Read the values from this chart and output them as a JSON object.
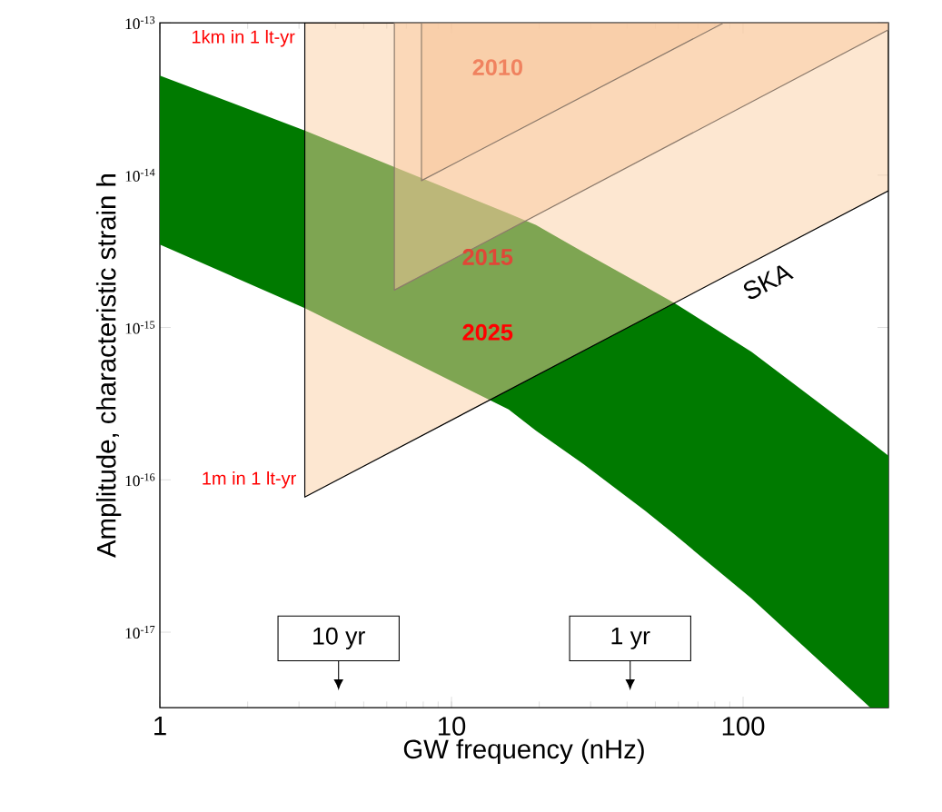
{
  "chart_data": {
    "type": "line",
    "xlabel": "GW frequency (nHz)",
    "ylabel": "Amplitude, characteristic strain h",
    "log": "xy",
    "xlim": [
      1,
      315
    ],
    "ylim": [
      3.2e-18,
      1e-13
    ],
    "xticks": [
      1,
      10,
      100
    ],
    "yticks": [
      {
        "value": 1e-13,
        "label": "10$^{-13}$"
      },
      {
        "value": 1e-14,
        "label": "10$^{-14}$"
      },
      {
        "value": 1e-15,
        "label": "10$^{-15}$"
      },
      {
        "value": 1e-16,
        "label": "10$^{-16}$"
      },
      {
        "value": 1e-17,
        "label": "10$^{-17}$"
      }
    ],
    "series": [
      {
        "color": "#007a00",
        "x": [
          1,
          3.14,
          15.7,
          19.5,
          28.5,
          46,
          58,
          107,
          273,
          315
        ],
        "values": [
          null,
          null,
          null,
          null,
          null,
          null,
          null,
          null,
          null,
          null
        ],
        "upper": [
          4.5e-14,
          1.96e-14,
          5.6e-15,
          4.7e-15,
          3.1e-15,
          1.86e-15,
          1.45e-15,
          6.9e-16,
          1.78e-16,
          1.44e-16
        ],
        "lower": [
          3.5e-15,
          1.34e-15,
          2.9e-16,
          2.1e-16,
          1.26e-16,
          6.3e-17,
          4.4e-17,
          1.66e-17,
          3.2e-18,
          3.2e-18
        ]
      },
      {
        "color": "#fbcfa3",
        "x": [
          3.14,
          315
        ],
        "values": [
          null,
          null
        ],
        "upper": [
          1e-13,
          1e-13
        ],
        "lower": [
          7.7e-17,
          7.9e-15
        ]
      },
      {
        "color": "#f9caa0",
        "x": [
          6.37,
          315
        ],
        "values": [
          null,
          null
        ],
        "upper": [
          1e-13,
          1e-13
        ],
        "lower": [
          1.76e-15,
          9e-14
        ]
      },
      {
        "color": "#f7c59c",
        "x": [
          7.89,
          86
        ],
        "values": [
          null,
          null
        ],
        "upper": [
          1e-13,
          1e-13
        ],
        "lower": [
          9.2e-15,
          1e-13
        ]
      }
    ],
    "annotations": [
      "1km in 1 lt-yr",
      "1m in 1 lt-yr",
      "2010",
      "2015",
      "2025",
      "SKA",
      "10 yr",
      "1 yr"
    ]
  }
}
